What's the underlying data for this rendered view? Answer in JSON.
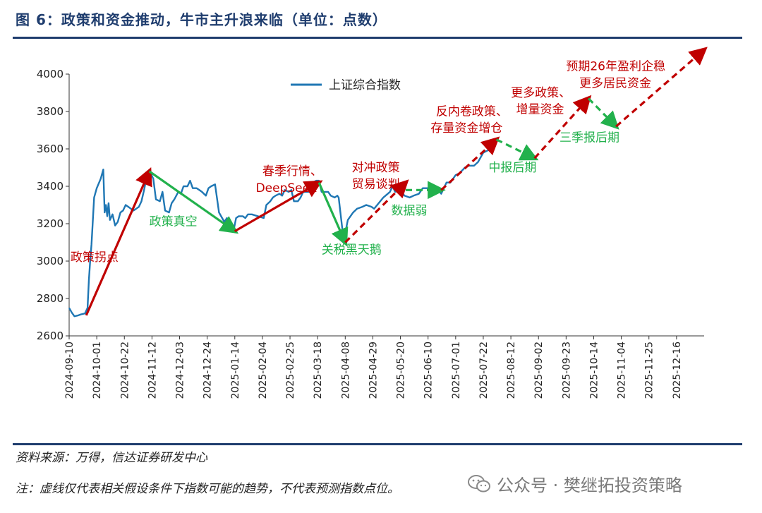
{
  "figure": {
    "title": "图 6：政策和资金推动，牛市主升浪来临（单位：点数）",
    "source": "资料来源：万得，信达证券研发中心",
    "note": "注：虚线仅代表相关假设条件下指数可能的趋势，不代表预测指数点位。",
    "watermark": "公众号 · 樊继拓投资策略"
  },
  "colors": {
    "series": "#1f77b4",
    "up_arrow": "#c00000",
    "down_arrow": "#22b14c",
    "title": "#1f3d6e"
  },
  "chart_data": {
    "type": "line",
    "legend": "上证综合指数",
    "legend_position": "top-center",
    "grid": false,
    "ylim": [
      2600,
      4000
    ],
    "yticks": [
      2600,
      2800,
      3000,
      3200,
      3400,
      3600,
      3800,
      4000
    ],
    "xlim": [
      "2024-09-10",
      "2026-01-06"
    ],
    "xticks": [
      "2024-09-10",
      "2024-10-01",
      "2024-10-22",
      "2024-11-12",
      "2024-12-03",
      "2024-12-24",
      "2025-01-14",
      "2025-02-04",
      "2025-02-25",
      "2025-03-18",
      "2025-04-08",
      "2025-04-29",
      "2025-05-20",
      "2025-06-10",
      "2025-07-01",
      "2025-07-22",
      "2025-08-12",
      "2025-09-02",
      "2025-09-23",
      "2025-10-14",
      "2025-11-04",
      "2025-11-25",
      "2025-12-16"
    ],
    "series": [
      {
        "name": "上证综合指数",
        "points": [
          [
            "2024-09-10",
            2750
          ],
          [
            "2024-09-12",
            2725
          ],
          [
            "2024-09-14",
            2705
          ],
          [
            "2024-09-17",
            2710
          ],
          [
            "2024-09-19",
            2715
          ],
          [
            "2024-09-22",
            2720
          ],
          [
            "2024-09-24",
            2750
          ],
          [
            "2024-09-25",
            2900
          ],
          [
            "2024-09-26",
            3000
          ],
          [
            "2024-09-27",
            3090
          ],
          [
            "2024-09-29",
            3340
          ],
          [
            "2024-10-01",
            3390
          ],
          [
            "2024-10-04",
            3440
          ],
          [
            "2024-10-06",
            3490
          ],
          [
            "2024-10-07",
            3260
          ],
          [
            "2024-10-08",
            3300
          ],
          [
            "2024-10-09",
            3240
          ],
          [
            "2024-10-10",
            3310
          ],
          [
            "2024-10-11",
            3220
          ],
          [
            "2024-10-13",
            3250
          ],
          [
            "2024-10-15",
            3190
          ],
          [
            "2024-10-17",
            3210
          ],
          [
            "2024-10-19",
            3260
          ],
          [
            "2024-10-21",
            3270
          ],
          [
            "2024-10-23",
            3300
          ],
          [
            "2024-10-25",
            3290
          ],
          [
            "2024-10-27",
            3280
          ],
          [
            "2024-10-29",
            3270
          ],
          [
            "2024-10-31",
            3280
          ],
          [
            "2024-11-02",
            3290
          ],
          [
            "2024-11-04",
            3320
          ],
          [
            "2024-11-06",
            3380
          ],
          [
            "2024-11-08",
            3450
          ],
          [
            "2024-11-11",
            3470
          ],
          [
            "2024-11-13",
            3440
          ],
          [
            "2024-11-15",
            3330
          ],
          [
            "2024-11-18",
            3320
          ],
          [
            "2024-11-20",
            3370
          ],
          [
            "2024-11-22",
            3270
          ],
          [
            "2024-11-25",
            3260
          ],
          [
            "2024-11-27",
            3310
          ],
          [
            "2024-11-29",
            3330
          ],
          [
            "2024-12-02",
            3370
          ],
          [
            "2024-12-04",
            3360
          ],
          [
            "2024-12-06",
            3400
          ],
          [
            "2024-12-09",
            3400
          ],
          [
            "2024-12-11",
            3430
          ],
          [
            "2024-12-13",
            3390
          ],
          [
            "2024-12-16",
            3390
          ],
          [
            "2024-12-18",
            3380
          ],
          [
            "2024-12-20",
            3370
          ],
          [
            "2024-12-23",
            3350
          ],
          [
            "2024-12-25",
            3390
          ],
          [
            "2024-12-27",
            3400
          ],
          [
            "2024-12-30",
            3410
          ],
          [
            "2025-01-02",
            3260
          ],
          [
            "2025-01-06",
            3210
          ],
          [
            "2025-01-08",
            3230
          ],
          [
            "2025-01-10",
            3170
          ],
          [
            "2025-01-13",
            3160
          ],
          [
            "2025-01-15",
            3230
          ],
          [
            "2025-01-17",
            3240
          ],
          [
            "2025-01-20",
            3240
          ],
          [
            "2025-01-22",
            3230
          ],
          [
            "2025-01-24",
            3250
          ],
          [
            "2025-01-27",
            3250
          ],
          [
            "2025-02-05",
            3230
          ],
          [
            "2025-02-07",
            3300
          ],
          [
            "2025-02-10",
            3320
          ],
          [
            "2025-02-12",
            3340
          ],
          [
            "2025-02-14",
            3350
          ],
          [
            "2025-02-17",
            3360
          ],
          [
            "2025-02-19",
            3350
          ],
          [
            "2025-02-21",
            3380
          ],
          [
            "2025-02-24",
            3370
          ],
          [
            "2025-02-26",
            3380
          ],
          [
            "2025-02-28",
            3320
          ],
          [
            "2025-03-03",
            3320
          ],
          [
            "2025-03-05",
            3340
          ],
          [
            "2025-03-07",
            3370
          ],
          [
            "2025-03-10",
            3370
          ],
          [
            "2025-03-12",
            3370
          ],
          [
            "2025-03-14",
            3420
          ],
          [
            "2025-03-17",
            3430
          ],
          [
            "2025-03-19",
            3430
          ],
          [
            "2025-03-21",
            3370
          ],
          [
            "2025-03-24",
            3370
          ],
          [
            "2025-03-26",
            3370
          ],
          [
            "2025-03-28",
            3350
          ],
          [
            "2025-03-31",
            3340
          ],
          [
            "2025-04-02",
            3350
          ],
          [
            "2025-04-03",
            3340
          ],
          [
            "2025-04-07",
            3100
          ],
          [
            "2025-04-08",
            3150
          ],
          [
            "2025-04-10",
            3220
          ],
          [
            "2025-04-14",
            3260
          ],
          [
            "2025-04-17",
            3280
          ],
          [
            "2025-04-21",
            3290
          ],
          [
            "2025-04-24",
            3300
          ],
          [
            "2025-04-28",
            3290
          ],
          [
            "2025-04-30",
            3280
          ],
          [
            "2025-05-07",
            3340
          ],
          [
            "2025-05-12",
            3370
          ],
          [
            "2025-05-14",
            3400
          ],
          [
            "2025-05-16",
            3370
          ],
          [
            "2025-05-20",
            3380
          ],
          [
            "2025-05-23",
            3350
          ],
          [
            "2025-05-27",
            3340
          ],
          [
            "2025-05-30",
            3350
          ],
          [
            "2025-06-03",
            3360
          ],
          [
            "2025-06-06",
            3390
          ],
          [
            "2025-06-10",
            3390
          ],
          [
            "2025-06-13",
            3380
          ],
          [
            "2025-06-17",
            3390
          ],
          [
            "2025-06-20",
            3360
          ],
          [
            "2025-06-24",
            3420
          ],
          [
            "2025-06-27",
            3420
          ],
          [
            "2025-07-01",
            3460
          ],
          [
            "2025-07-04",
            3470
          ],
          [
            "2025-07-08",
            3500
          ],
          [
            "2025-07-11",
            3510
          ],
          [
            "2025-07-15",
            3510
          ],
          [
            "2025-07-18",
            3530
          ],
          [
            "2025-07-22",
            3580
          ],
          [
            "2025-07-25",
            3590
          ],
          [
            "2025-07-28",
            3600
          ]
        ]
      }
    ],
    "arrows": [
      {
        "from": [
          "2024-09-23",
          2710
        ],
        "to": [
          "2024-11-10",
          3480
        ],
        "color": "up",
        "style": "solid"
      },
      {
        "from": [
          "2024-11-10",
          3480
        ],
        "to": [
          "2025-01-14",
          3160
        ],
        "color": "down",
        "style": "solid"
      },
      {
        "from": [
          "2025-01-14",
          3160
        ],
        "to": [
          "2025-03-19",
          3420
        ],
        "color": "up",
        "style": "solid"
      },
      {
        "from": [
          "2025-03-19",
          3420
        ],
        "to": [
          "2025-04-08",
          3100
        ],
        "color": "down",
        "style": "solid"
      },
      {
        "from": [
          "2025-04-08",
          3100
        ],
        "to": [
          "2025-05-24",
          3420
        ],
        "color": "up",
        "style": "dashed"
      },
      {
        "from": [
          "2025-05-24",
          3380
        ],
        "to": [
          "2025-06-20",
          3380
        ],
        "color": "down",
        "style": "dashed"
      },
      {
        "from": [
          "2025-06-20",
          3380
        ],
        "to": [
          "2025-08-01",
          3650
        ],
        "color": "up",
        "style": "dashed"
      },
      {
        "from": [
          "2025-08-01",
          3650
        ],
        "to": [
          "2025-08-30",
          3550
        ],
        "color": "down",
        "style": "dashed"
      },
      {
        "from": [
          "2025-08-30",
          3550
        ],
        "to": [
          "2025-10-10",
          3870
        ],
        "color": "up",
        "style": "dashed"
      },
      {
        "from": [
          "2025-10-10",
          3870
        ],
        "to": [
          "2025-10-31",
          3720
        ],
        "color": "down",
        "style": "dashed"
      },
      {
        "from": [
          "2025-10-31",
          3720
        ],
        "to": [
          "2026-01-06",
          4130
        ],
        "color": "up",
        "style": "dashed"
      }
    ],
    "annotations": [
      {
        "text": "政策拐点",
        "at": [
          "2024-09-11",
          3000
        ],
        "color": "up"
      },
      {
        "text": "政策真空",
        "at": [
          "2024-11-10",
          3190
        ],
        "color": "down"
      },
      {
        "text": "春季行情、",
        "at": [
          "2025-02-04",
          3460
        ],
        "color": "up"
      },
      {
        "text": "DeepSeek",
        "at": [
          "2025-01-30",
          3370
        ],
        "color": "up"
      },
      {
        "text": "关税黑天鹅",
        "at": [
          "2025-03-21",
          3040
        ],
        "color": "down"
      },
      {
        "text": "对冲政策",
        "at": [
          "2025-04-13",
          3480
        ],
        "color": "up"
      },
      {
        "text": "贸易谈判",
        "at": [
          "2025-04-13",
          3390
        ],
        "color": "up"
      },
      {
        "text": "数据弱",
        "at": [
          "2025-05-13",
          3250
        ],
        "color": "down"
      },
      {
        "text": "反内卷政策、",
        "at": [
          "2025-06-16",
          3780
        ],
        "color": "up"
      },
      {
        "text": "存量资金增仓",
        "at": [
          "2025-06-12",
          3690
        ],
        "color": "up"
      },
      {
        "text": "中报后期",
        "at": [
          "2025-07-26",
          3480
        ],
        "color": "down"
      },
      {
        "text": "更多政策、",
        "at": [
          "2025-08-12",
          3880
        ],
        "color": "up"
      },
      {
        "text": "增量资金",
        "at": [
          "2025-08-16",
          3790
        ],
        "color": "up"
      },
      {
        "text": "三季报后期",
        "at": [
          "2025-09-18",
          3640
        ],
        "color": "down"
      },
      {
        "text": "预期26年盈利企稳",
        "at": [
          "2025-09-23",
          4020
        ],
        "color": "up"
      },
      {
        "text": "更多居民资金",
        "at": [
          "2025-10-03",
          3930
        ],
        "color": "up"
      }
    ]
  }
}
